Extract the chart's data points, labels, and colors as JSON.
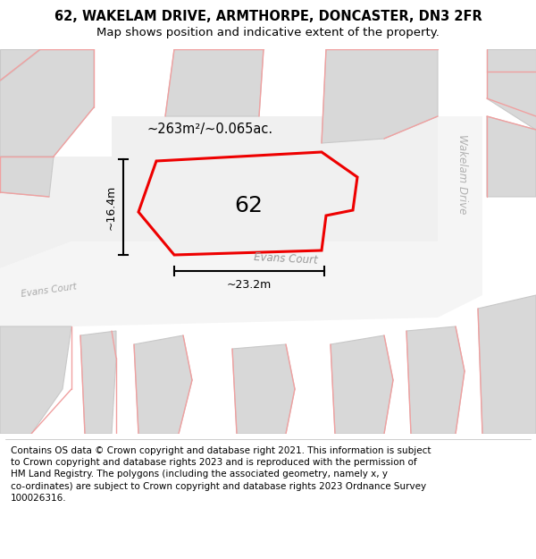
{
  "title_line1": "62, WAKELAM DRIVE, ARMTHORPE, DONCASTER, DN3 2FR",
  "title_line2": "Map shows position and indicative extent of the property.",
  "footer_lines": [
    "Contains OS data © Crown copyright and database right 2021. This information is subject to Crown copyright and database rights 2023 and is reproduced with the permission of",
    "HM Land Registry. The polygons (including the associated geometry, namely x, y co-ordinates) are subject to Crown copyright and database rights 2023 Ordnance Survey",
    "100026316."
  ],
  "map_bg": "#eeeeee",
  "building_fill": "#d8d8d8",
  "building_edge": "#c8c8c8",
  "road_fill": "#f5f5f5",
  "pink": "#f0a0a0",
  "red": "#ee0000",
  "prop_fill": "#f0f0f0",
  "annotation_area": "~263m²/~0.065ac.",
  "annotation_width": "~23.2m",
  "annotation_height": "~16.4m",
  "label_evans_main": "Evans Court",
  "label_evans_left": "Evans Court",
  "label_wakelam": "Wakelam Drive",
  "number_label": "62",
  "title_fontsize": 10.5,
  "subtitle_fontsize": 9.5,
  "footer_fontsize": 7.5,
  "num_fontsize": 18,
  "road_fontsize": 8.5,
  "ann_fontsize": 10.5,
  "dim_fontsize": 9
}
